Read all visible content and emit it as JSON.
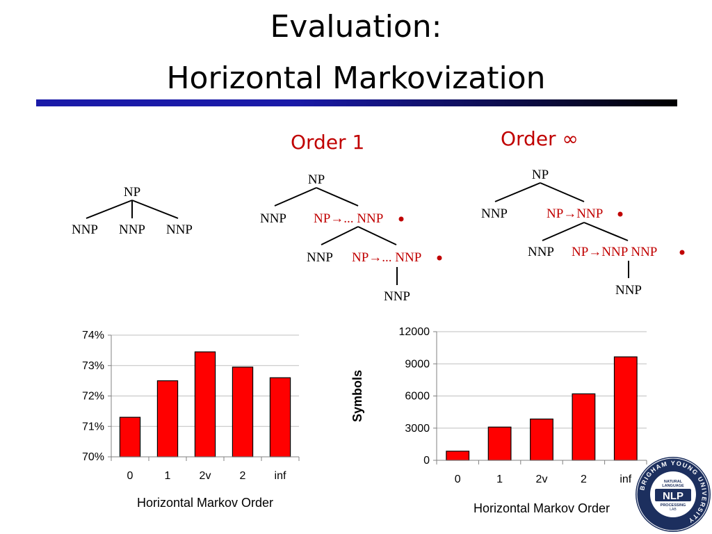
{
  "slide": {
    "title_line1": "Evaluation:",
    "title_line2": "Horizontal Markovization"
  },
  "orders": {
    "order1": "Order 1",
    "order_inf": "Order ∞"
  },
  "trees": {
    "flat": {
      "root": "NP",
      "children": [
        "NNP",
        "NNP",
        "NNP"
      ]
    },
    "order1": {
      "root": "NP",
      "l1_left": "NNP",
      "l1_right": "NP→... NNP",
      "l2_left": "NNP",
      "l2_right": "NP→... NNP",
      "l3": "NNP"
    },
    "order_inf": {
      "root": "NP",
      "l1_left": "NNP",
      "l1_right": "NP→NNP",
      "l2_left": "NNP",
      "l2_right": "NP→NNP NNP",
      "l3": "NNP"
    }
  },
  "colors": {
    "bar": "#ff0000",
    "annotation": "#c00000",
    "rule": "#1a1aa8"
  },
  "logo": {
    "ring_text": "BRIGHAM YOUNG UNIVERSITY",
    "line1": "NATURAL",
    "line2": "LANGUAGE",
    "big": "NLP",
    "line3": "PROCESSING",
    "line4": "LAB"
  },
  "chart_data": [
    {
      "type": "bar",
      "categories": [
        "0",
        "1",
        "2v",
        "2",
        "inf"
      ],
      "values": [
        71.3,
        72.5,
        73.45,
        72.95,
        72.6
      ],
      "xlabel": "Horizontal Markov Order",
      "ylabel": "",
      "ylim": [
        70,
        74
      ],
      "yticks": [
        "70%",
        "71%",
        "72%",
        "73%",
        "74%"
      ],
      "grid": true
    },
    {
      "type": "bar",
      "categories": [
        "0",
        "1",
        "2v",
        "2",
        "inf"
      ],
      "values": [
        850,
        3100,
        3850,
        6200,
        9650
      ],
      "xlabel": "Horizontal Markov Order",
      "ylabel": "Symbols",
      "ylim": [
        0,
        12000
      ],
      "yticks": [
        "0",
        "3000",
        "6000",
        "9000",
        "12000"
      ],
      "grid": true
    }
  ]
}
